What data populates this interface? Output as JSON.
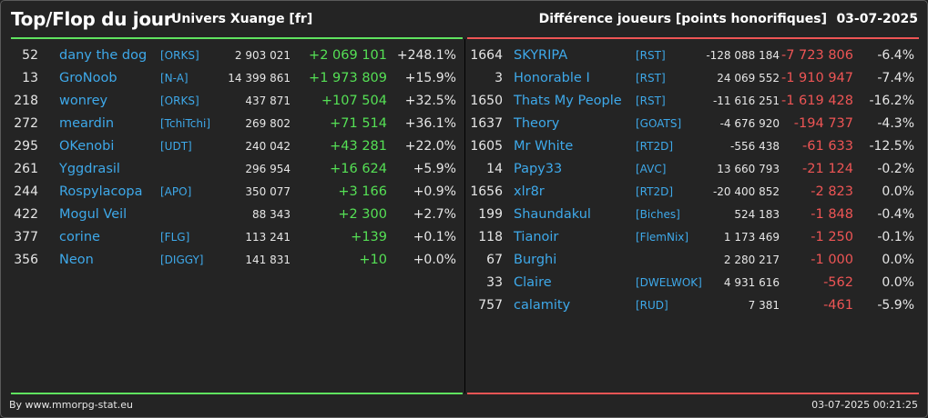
{
  "header": {
    "title": "Top/Flop du jour",
    "universe": "Univers Xuange [fr]",
    "right_title": "Différence joueurs [points honorifiques]",
    "date": "03-07-2025"
  },
  "top": [
    {
      "rank": "52",
      "name": "dany the dog",
      "alliance": "[ORKS]",
      "points": "2 903 021",
      "diff": "+2 069 101",
      "pct": "+248.1%"
    },
    {
      "rank": "13",
      "name": "GroNoob",
      "alliance": "[N-A]",
      "points": "14 399 861",
      "diff": "+1 973 809",
      "pct": "+15.9%"
    },
    {
      "rank": "218",
      "name": "wonrey",
      "alliance": "[ORKS]",
      "points": "437 871",
      "diff": "+107 504",
      "pct": "+32.5%"
    },
    {
      "rank": "272",
      "name": "meardin",
      "alliance": "[TchiTchi]",
      "points": "269 802",
      "diff": "+71 514",
      "pct": "+36.1%"
    },
    {
      "rank": "295",
      "name": "OKenobi",
      "alliance": "[UDT]",
      "points": "240 042",
      "diff": "+43 281",
      "pct": "+22.0%"
    },
    {
      "rank": "261",
      "name": "Yggdrasil",
      "alliance": "",
      "points": "296 954",
      "diff": "+16 624",
      "pct": "+5.9%"
    },
    {
      "rank": "244",
      "name": "Rospylacopa",
      "alliance": "[APO]",
      "points": "350 077",
      "diff": "+3 166",
      "pct": "+0.9%"
    },
    {
      "rank": "422",
      "name": "Mogul Veil",
      "alliance": "",
      "points": "88 343",
      "diff": "+2 300",
      "pct": "+2.7%"
    },
    {
      "rank": "377",
      "name": "corine",
      "alliance": "[FLG]",
      "points": "113 241",
      "diff": "+139",
      "pct": "+0.1%"
    },
    {
      "rank": "356",
      "name": "Neon",
      "alliance": "[DIGGY]",
      "points": "141 831",
      "diff": "+10",
      "pct": "+0.0%"
    }
  ],
  "flop": [
    {
      "rank": "1664",
      "name": "SKYRIPA",
      "alliance": "[RST]",
      "points": "-128 088 184",
      "diff": "-7 723 806",
      "pct": "-6.4%"
    },
    {
      "rank": "3",
      "name": "Honorable I",
      "alliance": "[RST]",
      "points": "24 069 552",
      "diff": "-1 910 947",
      "pct": "-7.4%"
    },
    {
      "rank": "1650",
      "name": "Thats My People",
      "alliance": "[RST]",
      "points": "-11 616 251",
      "diff": "-1 619 428",
      "pct": "-16.2%"
    },
    {
      "rank": "1637",
      "name": "Theory",
      "alliance": "[GOATS]",
      "points": "-4 676 920",
      "diff": "-194 737",
      "pct": "-4.3%"
    },
    {
      "rank": "1605",
      "name": "Mr White",
      "alliance": "[RT2D]",
      "points": "-556 438",
      "diff": "-61 633",
      "pct": "-12.5%"
    },
    {
      "rank": "14",
      "name": "Papy33",
      "alliance": "[AVC]",
      "points": "13 660 793",
      "diff": "-21 124",
      "pct": "-0.2%"
    },
    {
      "rank": "1656",
      "name": "xlr8r",
      "alliance": "[RT2D]",
      "points": "-20 400 852",
      "diff": "-2 823",
      "pct": "0.0%"
    },
    {
      "rank": "199",
      "name": "Shaundakul",
      "alliance": "[Biches]",
      "points": "524 183",
      "diff": "-1 848",
      "pct": "-0.4%"
    },
    {
      "rank": "118",
      "name": "Tianoir",
      "alliance": "[FlemNix]",
      "points": "1 173 469",
      "diff": "-1 250",
      "pct": "-0.1%"
    },
    {
      "rank": "67",
      "name": "Burghi",
      "alliance": "",
      "points": "2 280 217",
      "diff": "-1 000",
      "pct": "0.0%"
    },
    {
      "rank": "33",
      "name": "Claire",
      "alliance": "[DWELWOK]",
      "points": "4 931 616",
      "diff": "-562",
      "pct": "0.0%"
    },
    {
      "rank": "757",
      "name": "calamity",
      "alliance": "[RUD]",
      "points": "7 381",
      "diff": "-461",
      "pct": "-5.9%"
    }
  ],
  "footer": {
    "credit": "By www.mmorpg-stat.eu",
    "timestamp": "03-07-2025 00:21:25"
  },
  "colors": {
    "gain": "#55e055",
    "loss": "#ee5555",
    "link": "#3ea9ea",
    "background": "#242424"
  }
}
